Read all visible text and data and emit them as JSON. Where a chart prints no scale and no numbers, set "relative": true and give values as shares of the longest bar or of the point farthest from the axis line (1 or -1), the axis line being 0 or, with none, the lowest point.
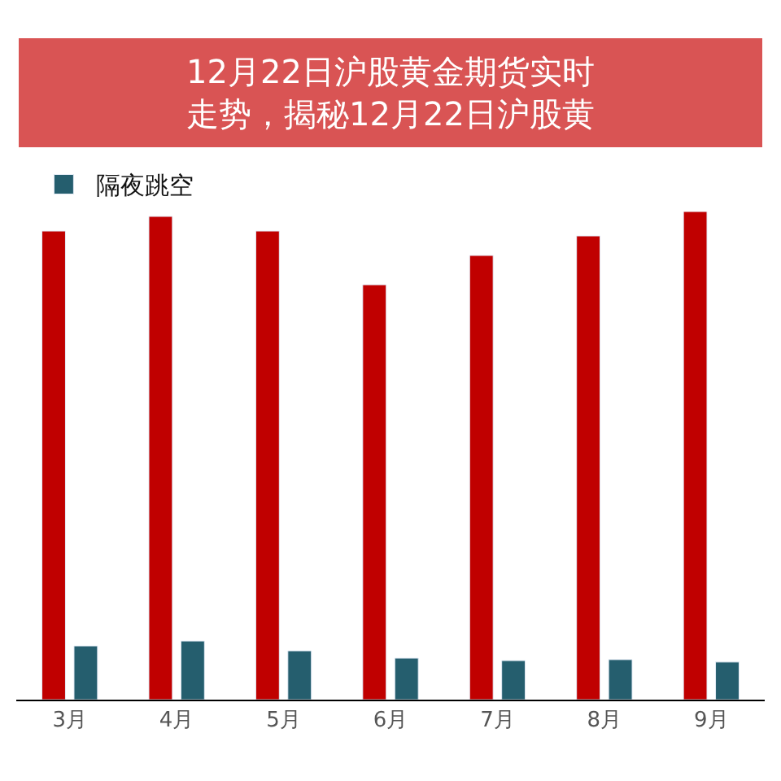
{
  "chart_data": {
    "type": "bar",
    "title": "12月22日沪股黄金期货实时走势，揭秘12月22日沪股黄",
    "relative": true,
    "categories": [
      "3月",
      "4月",
      "5月",
      "6月",
      "7月",
      "8月",
      "9月"
    ],
    "series": [
      {
        "color": "#c00000",
        "values": [
          0.96,
          0.99,
          0.96,
          0.85,
          0.91,
          0.95,
          1
        ]
      },
      {
        "name": "隔夜跳空",
        "color": "#255e6e",
        "values": [
          0.11,
          0.12,
          0.1,
          0.085,
          0.08,
          0.082,
          0.077
        ]
      }
    ],
    "legend": "top left"
  }
}
